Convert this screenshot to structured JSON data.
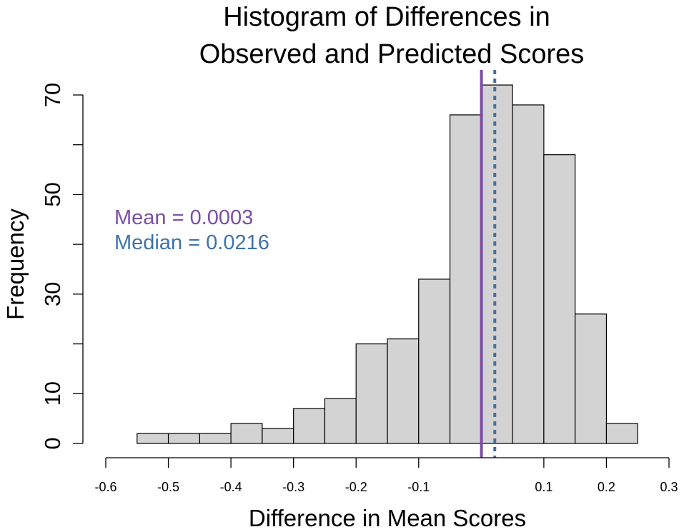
{
  "chart_data": {
    "type": "bar",
    "title_lines": [
      "Histogram of Differences in",
      "Observed and Predicted Scores"
    ],
    "xlabel": "Difference in Mean Scores",
    "ylabel": "Frequency",
    "xlim": [
      -0.6,
      0.3
    ],
    "ylim": [
      0,
      70
    ],
    "x_ticks": [
      -0.6,
      -0.5,
      -0.4,
      -0.3,
      -0.2,
      -0.1,
      0.1,
      0.2,
      0.3
    ],
    "x_tick_labels": [
      "-0.6",
      "-0.5",
      "-0.4",
      "-0.3",
      "-0.2",
      "-0.1",
      "0.1",
      "0.2",
      "0.3"
    ],
    "y_ticks": [
      0,
      10,
      30,
      50,
      70
    ],
    "y_tick_labels": [
      "0",
      "10",
      "30",
      "50",
      "70"
    ],
    "bin_width": 0.05,
    "bin_starts": [
      -0.55,
      -0.5,
      -0.45,
      -0.4,
      -0.35,
      -0.3,
      -0.25,
      -0.2,
      -0.15,
      -0.1,
      -0.05,
      0.0,
      0.05,
      0.1,
      0.15,
      0.2
    ],
    "values": [
      2,
      2,
      2,
      4,
      3,
      7,
      9,
      20,
      21,
      33,
      66,
      72,
      68,
      58,
      26,
      4
    ],
    "grid": false,
    "reference_lines": {
      "mean": {
        "value": 0.0003,
        "color": "#7b4ea3",
        "style": "solid"
      },
      "median": {
        "value": 0.0216,
        "color": "#3f72a8",
        "style": "dotted"
      }
    },
    "annotations": {
      "mean_label": "Mean = 0.0003",
      "median_label": "Median = 0.0216"
    },
    "colors": {
      "bar_fill": "#d3d3d3",
      "bar_edge": "#000000",
      "mean": "#7b4ea3",
      "median": "#3f72a8"
    }
  }
}
